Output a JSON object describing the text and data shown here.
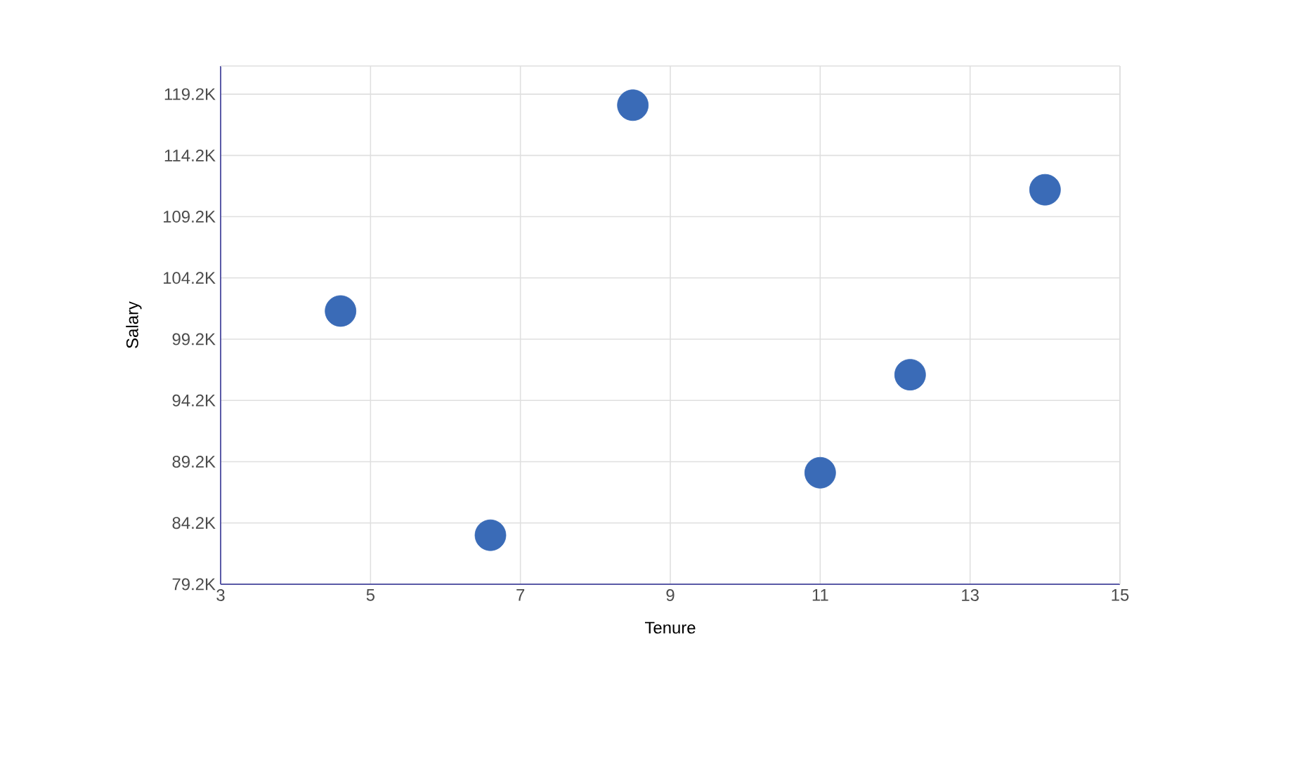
{
  "chart_data": {
    "type": "scatter",
    "xlabel": "Tenure",
    "ylabel": "Salary",
    "x": [
      4.6,
      6.6,
      8.5,
      11,
      12.2,
      14
    ],
    "series": [
      {
        "color": "#3a6bb7",
        "values": [
          101500,
          83200,
          118300,
          88300,
          96300,
          111400
        ]
      }
    ],
    "xlim": [
      3,
      15
    ],
    "xticks": [
      3,
      5,
      7,
      9,
      11,
      13,
      15
    ],
    "ylim": [
      79200,
      121500
    ],
    "yticks": [
      {
        "value": 79200,
        "label": "79.2K"
      },
      {
        "value": 84200,
        "label": "84.2K"
      },
      {
        "value": 89200,
        "label": "89.2K"
      },
      {
        "value": 94200,
        "label": "94.2K"
      },
      {
        "value": 99200,
        "label": "99.2K"
      },
      {
        "value": 104200,
        "label": "104.2K"
      },
      {
        "value": 109200,
        "label": "109.2K"
      },
      {
        "value": 114200,
        "label": "114.2K"
      },
      {
        "value": 119200,
        "label": "119.2K"
      }
    ],
    "grid": true,
    "marker": "circle"
  }
}
